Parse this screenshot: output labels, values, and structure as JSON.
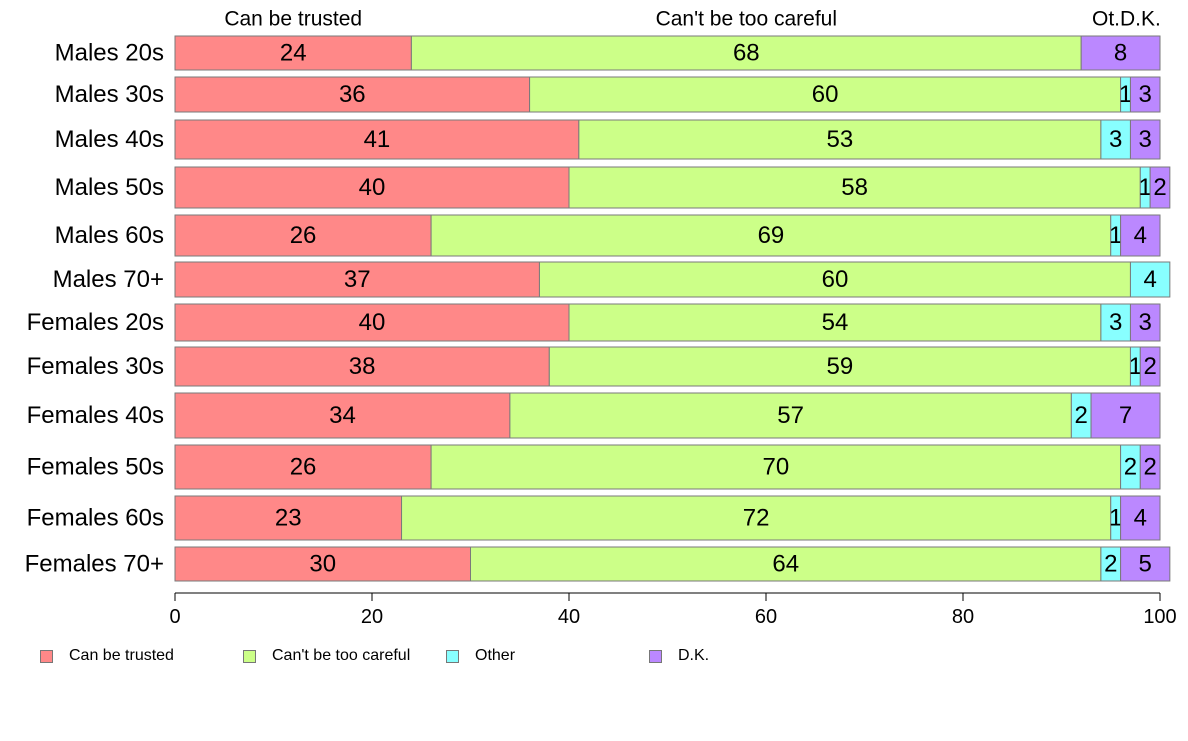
{
  "chart_data": {
    "type": "bar",
    "orientation": "horizontal",
    "stacked": true,
    "categories": [
      "Males 20s",
      "Males 30s",
      "Males 40s",
      "Males 50s",
      "Males 60s",
      "Males 70+",
      "Females 20s",
      "Females 30s",
      "Females 40s",
      "Females 50s",
      "Females 60s",
      "Females 70+"
    ],
    "series": [
      {
        "name": "Can be trusted",
        "color": "#ff8888",
        "values": [
          24,
          36,
          41,
          40,
          26,
          37,
          40,
          38,
          34,
          26,
          23,
          30
        ]
      },
      {
        "name": "Can't be too careful",
        "color": "#ccff88",
        "values": [
          68,
          60,
          53,
          58,
          69,
          60,
          54,
          59,
          57,
          70,
          72,
          64
        ]
      },
      {
        "name": "Other",
        "color": "#88ffff",
        "values": [
          0,
          1,
          3,
          1,
          1,
          4,
          3,
          1,
          2,
          2,
          1,
          2
        ]
      },
      {
        "name": "D.K.",
        "color": "#bb88ff",
        "values": [
          8,
          3,
          3,
          2,
          4,
          0,
          3,
          2,
          7,
          2,
          4,
          5
        ]
      }
    ],
    "top_labels": [
      "Can be trusted",
      "Can't be too careful",
      "Ot.",
      "D.K."
    ],
    "xlim": [
      0,
      100
    ],
    "xticks": [
      0,
      20,
      40,
      60,
      80,
      100
    ],
    "grid": false,
    "legend_position": "bottom"
  }
}
